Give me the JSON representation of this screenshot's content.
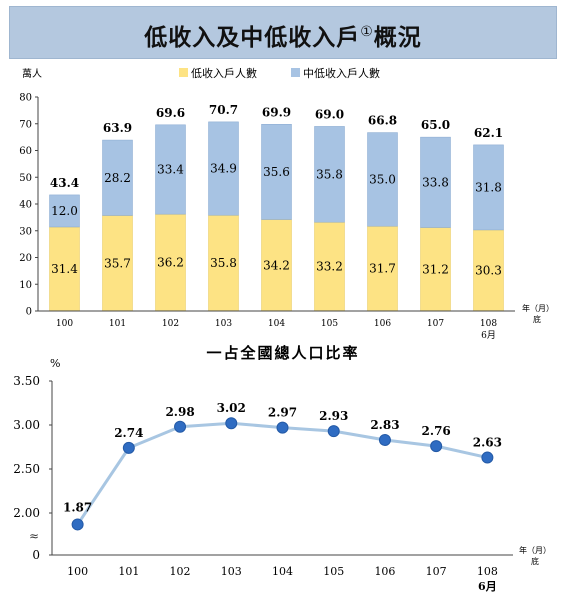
{
  "title": {
    "main": "低收入及中低收入戶",
    "sup": "①",
    "end": "概況"
  },
  "colors": {
    "low": "#fde384",
    "midlow": "#a7c3e3",
    "line": "#a8c6e2",
    "marker": "#2f6cc2",
    "banner": "#b4c8df"
  },
  "chart_data": [
    {
      "type": "bar",
      "stacked": true,
      "unit_label": "萬人",
      "categories": [
        "100",
        "101",
        "102",
        "103",
        "104",
        "105",
        "106",
        "107",
        "108"
      ],
      "category_sublabels": [
        "",
        "",
        "",
        "",
        "",
        "",
        "",
        "",
        "6月"
      ],
      "x_unit_label": "年（月）",
      "x_unit_sub": "底",
      "series": [
        {
          "name": "低收入戶人數",
          "values": [
            31.4,
            35.7,
            36.2,
            35.8,
            34.2,
            33.2,
            31.7,
            31.2,
            30.3
          ]
        },
        {
          "name": "中低收入戶人數",
          "values": [
            12.0,
            28.2,
            33.4,
            34.9,
            35.6,
            35.8,
            35.0,
            33.8,
            31.8
          ]
        }
      ],
      "totals": [
        "43.4",
        "63.9",
        "69.6",
        "70.7",
        "69.9",
        "69.0",
        "66.8",
        "65.0",
        "62.1"
      ],
      "value_labels": {
        "low": [
          "31.4",
          "35.7",
          "36.2",
          "35.8",
          "34.2",
          "33.2",
          "31.7",
          "31.2",
          "30.3"
        ],
        "midlow": [
          "12.0",
          "28.2",
          "33.4",
          "34.9",
          "35.6",
          "35.8",
          "35.0",
          "33.8",
          "31.8"
        ]
      },
      "ylim": [
        0,
        80
      ],
      "yticks": [
        "0",
        "10",
        "20",
        "30",
        "40",
        "50",
        "60",
        "70",
        "80"
      ],
      "legend_position": "top"
    },
    {
      "type": "line",
      "title": "一占全國總人口比率",
      "unit_label": "%",
      "categories": [
        "100",
        "101",
        "102",
        "103",
        "104",
        "105",
        "106",
        "107",
        "108"
      ],
      "category_sublabels": [
        "",
        "",
        "",
        "",
        "",
        "",
        "",
        "",
        "6月"
      ],
      "x_unit_label": "年（月）",
      "x_unit_sub": "底",
      "values": [
        1.87,
        2.74,
        2.98,
        3.02,
        2.97,
        2.93,
        2.83,
        2.76,
        2.63
      ],
      "value_labels": [
        "1.87",
        "2.74",
        "2.98",
        "3.02",
        "2.97",
        "2.93",
        "2.83",
        "2.76",
        "2.63"
      ],
      "ylim": [
        1.75,
        3.5
      ],
      "yticks": [
        "0",
        "2.00",
        "2.50",
        "3.00",
        "3.50"
      ],
      "axis_break_symbol": "≈",
      "axis_break": true
    }
  ]
}
